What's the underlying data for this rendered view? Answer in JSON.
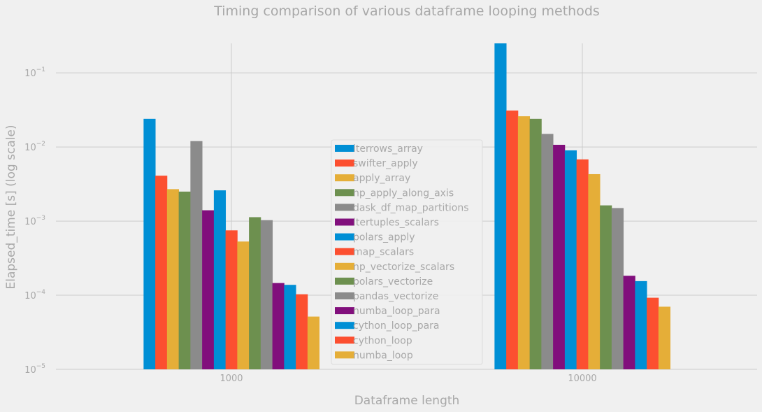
{
  "chart_data": {
    "type": "bar",
    "title": "Timing comparison of various dataframe looping methods",
    "xlabel": "Dataframe length",
    "ylabel": "Elapsed_time [s] (log scale)",
    "yscale": "log",
    "ylim": [
      1e-05,
      0.25
    ],
    "y_ticks": [
      {
        "value": 1e-05,
        "base": "10",
        "exp": "−5"
      },
      {
        "value": 0.0001,
        "base": "10",
        "exp": "−4"
      },
      {
        "value": 0.001,
        "base": "10",
        "exp": "−3"
      },
      {
        "value": 0.01,
        "base": "10",
        "exp": "−2"
      },
      {
        "value": 0.1,
        "base": "10",
        "exp": "−1"
      }
    ],
    "categories": [
      "1000",
      "10000"
    ],
    "grid": true,
    "legend_position": "center",
    "series": [
      {
        "name": "iterrows_array",
        "color": "#008fd5",
        "values": [
          0.024,
          0.25
        ]
      },
      {
        "name": "swifter_apply",
        "color": "#fc4f30",
        "values": [
          0.0041,
          0.031
        ]
      },
      {
        "name": "apply_array",
        "color": "#e5ae38",
        "values": [
          0.0027,
          0.026
        ]
      },
      {
        "name": "np_apply_along_axis",
        "color": "#6d904f",
        "values": [
          0.0025,
          0.024
        ]
      },
      {
        "name": "dask_df_map_partitions",
        "color": "#8b8b8b",
        "values": [
          0.012,
          0.015
        ]
      },
      {
        "name": "itertuples_scalars",
        "color": "#810f7c",
        "values": [
          0.0014,
          0.0107
        ]
      },
      {
        "name": "polars_apply",
        "color": "#008fd5",
        "values": [
          0.0026,
          0.009
        ]
      },
      {
        "name": "map_scalars",
        "color": "#fc4f30",
        "values": [
          0.00075,
          0.0068
        ]
      },
      {
        "name": "np_vectorize_scalars",
        "color": "#e5ae38",
        "values": [
          0.00053,
          0.0043
        ]
      },
      {
        "name": "polars_vectorize",
        "color": "#6d904f",
        "values": [
          0.00113,
          0.00163
        ]
      },
      {
        "name": "pandas_vectorize",
        "color": "#8b8b8b",
        "values": [
          0.00103,
          0.0015
        ]
      },
      {
        "name": "numba_loop_para",
        "color": "#810f7c",
        "values": [
          0.000146,
          0.000183
        ]
      },
      {
        "name": "cython_loop_para",
        "color": "#008fd5",
        "values": [
          0.000138,
          0.000155
        ]
      },
      {
        "name": "cython_loop",
        "color": "#fc4f30",
        "values": [
          0.000103,
          9.25e-05
        ]
      },
      {
        "name": "numba_loop",
        "color": "#e5ae38",
        "values": [
          5.15e-05,
          7e-05
        ]
      }
    ]
  }
}
